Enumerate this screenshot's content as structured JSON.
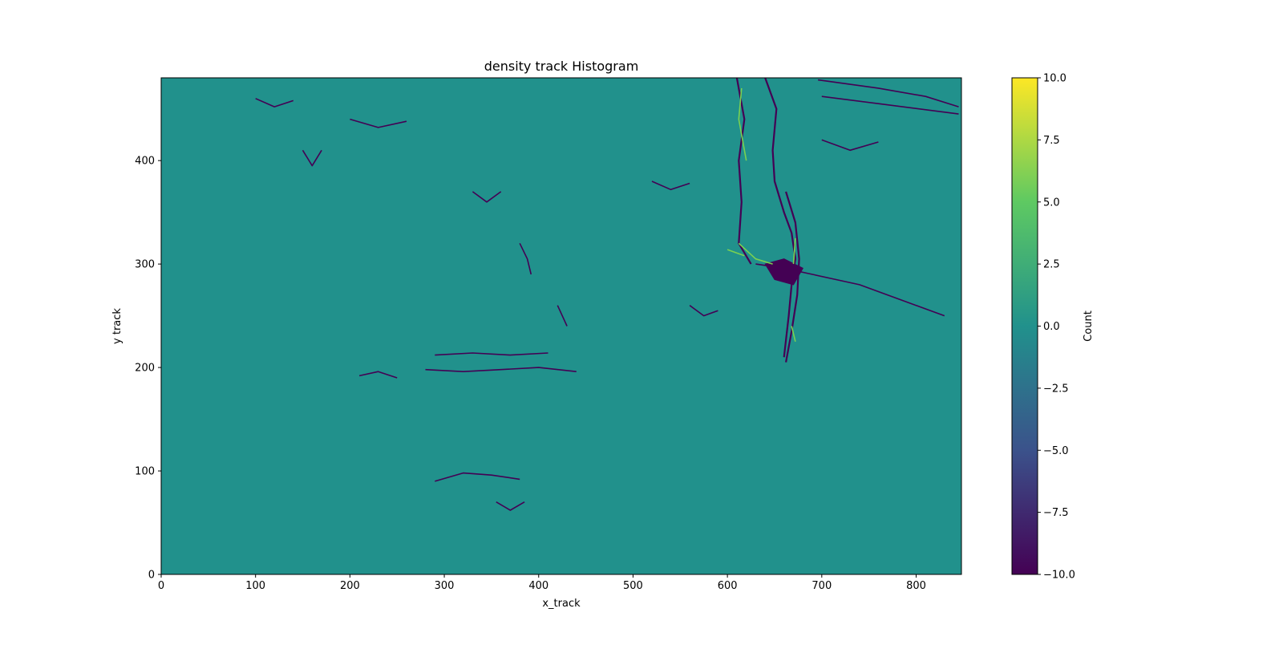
{
  "chart_data": {
    "type": "heatmap",
    "title": "density track Histogram",
    "xlabel": "x_track",
    "ylabel": "y track",
    "xlim": [
      0,
      848
    ],
    "ylim": [
      0,
      480
    ],
    "x_ticks": [
      "0",
      "100",
      "200",
      "300",
      "400",
      "500",
      "600",
      "700",
      "800"
    ],
    "y_ticks": [
      "0",
      "100",
      "200",
      "300",
      "400"
    ],
    "colorbar": {
      "label": "Count",
      "range": [
        -10,
        10
      ],
      "ticks": [
        "10.0",
        "7.5",
        "5.0",
        "2.5",
        "0.0",
        "−2.5",
        "−5.0",
        "−7.5",
        "−10.0"
      ],
      "colormap": "viridis",
      "stops": [
        "#440154",
        "#3b528b",
        "#21918c",
        "#5ec962",
        "#fde725"
      ]
    },
    "background_value": 0,
    "background_color": "#21918c",
    "low_color": "#440154",
    "high_color": "#7ad151",
    "features": {
      "negative_strokes": [
        [
          [
            610,
            480
          ],
          [
            618,
            440
          ],
          [
            612,
            400
          ],
          [
            615,
            360
          ],
          [
            612,
            320
          ],
          [
            625,
            300
          ]
        ],
        [
          [
            640,
            480
          ],
          [
            652,
            450
          ],
          [
            648,
            410
          ],
          [
            650,
            380
          ],
          [
            660,
            350
          ],
          [
            668,
            330
          ],
          [
            672,
            305
          ],
          [
            668,
            280
          ],
          [
            665,
            250
          ],
          [
            660,
            210
          ]
        ],
        [
          [
            662,
            370
          ],
          [
            672,
            340
          ],
          [
            676,
            305
          ],
          [
            674,
            270
          ],
          [
            668,
            235
          ],
          [
            662,
            205
          ]
        ],
        [
          [
            630,
            300
          ],
          [
            660,
            296
          ],
          [
            690,
            290
          ],
          [
            740,
            280
          ],
          [
            800,
            260
          ],
          [
            830,
            250
          ]
        ],
        [
          [
            696,
            478
          ],
          [
            760,
            470
          ],
          [
            810,
            462
          ],
          [
            845,
            452
          ]
        ],
        [
          [
            700,
            462
          ],
          [
            760,
            455
          ],
          [
            845,
            445
          ]
        ],
        [
          [
            280,
            198
          ],
          [
            320,
            196
          ],
          [
            360,
            198
          ],
          [
            400,
            200
          ],
          [
            440,
            196
          ]
        ],
        [
          [
            290,
            212
          ],
          [
            330,
            214
          ],
          [
            370,
            212
          ],
          [
            410,
            214
          ]
        ],
        [
          [
            210,
            192
          ],
          [
            230,
            196
          ],
          [
            250,
            190
          ]
        ],
        [
          [
            290,
            90
          ],
          [
            320,
            98
          ],
          [
            350,
            96
          ],
          [
            380,
            92
          ]
        ],
        [
          [
            355,
            70
          ],
          [
            370,
            62
          ],
          [
            385,
            70
          ]
        ],
        [
          [
            330,
            370
          ],
          [
            345,
            360
          ],
          [
            360,
            370
          ]
        ],
        [
          [
            380,
            320
          ],
          [
            388,
            305
          ],
          [
            392,
            290
          ]
        ],
        [
          [
            420,
            260
          ],
          [
            426,
            248
          ],
          [
            430,
            240
          ]
        ],
        [
          [
            520,
            380
          ],
          [
            540,
            372
          ],
          [
            560,
            378
          ]
        ],
        [
          [
            200,
            440
          ],
          [
            230,
            432
          ],
          [
            260,
            438
          ]
        ],
        [
          [
            100,
            460
          ],
          [
            120,
            452
          ],
          [
            140,
            458
          ]
        ],
        [
          [
            700,
            420
          ],
          [
            730,
            410
          ],
          [
            760,
            418
          ]
        ],
        [
          [
            560,
            260
          ],
          [
            575,
            250
          ],
          [
            590,
            255
          ]
        ],
        [
          [
            150,
            410
          ],
          [
            160,
            395
          ],
          [
            170,
            410
          ]
        ]
      ],
      "negative_blob": [
        [
          640,
          300
        ],
        [
          660,
          305
        ],
        [
          680,
          296
        ],
        [
          670,
          280
        ],
        [
          650,
          285
        ]
      ],
      "positive_strokes": [
        [
          [
            615,
            470
          ],
          [
            612,
            440
          ],
          [
            620,
            400
          ]
        ],
        [
          [
            612,
            320
          ],
          [
            630,
            305
          ],
          [
            648,
            300
          ]
        ],
        [
          [
            672,
            325
          ],
          [
            670,
            300
          ]
        ],
        [
          [
            668,
            240
          ],
          [
            672,
            225
          ]
        ],
        [
          [
            600,
            314
          ],
          [
            618,
            308
          ]
        ]
      ]
    }
  }
}
